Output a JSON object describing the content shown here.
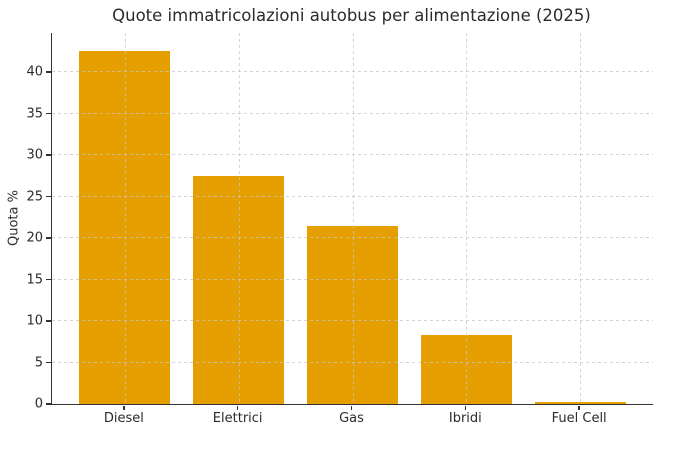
{
  "chart_data": {
    "type": "bar",
    "title": "Quote immatricolazioni autobus per alimentazione (2025)",
    "categories": [
      "Diesel",
      "Elettrici",
      "Gas",
      "Ibridi",
      "Fuel Cell"
    ],
    "values": [
      42.5,
      27.5,
      21.5,
      8.3,
      0.3
    ],
    "xlabel": "",
    "ylabel": "Quota %",
    "ylim": [
      0,
      44.7
    ],
    "yticks": [
      0,
      5,
      10,
      15,
      20,
      25,
      30,
      35,
      40
    ],
    "grid": "dashed, horizontal and vertical, drawn above bars",
    "legend": "none",
    "bar_color": "#E69F00"
  },
  "colors": {
    "bar": "#E69F00",
    "axis": "#333333",
    "grid": "#c6c6c6",
    "text": "#2b2b2b",
    "background": "#ffffff"
  }
}
